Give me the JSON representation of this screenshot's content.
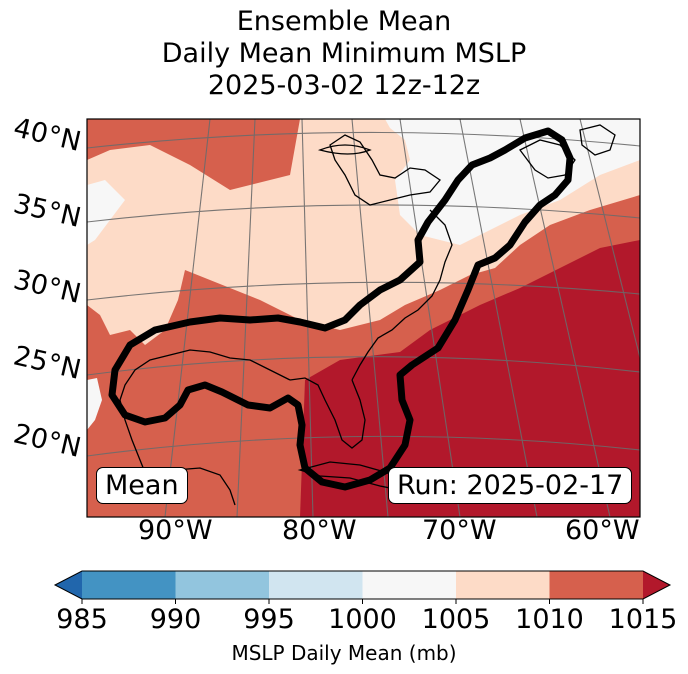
{
  "title": {
    "line1": "Ensemble Mean",
    "line2": "Daily Mean Minimum MSLP",
    "line3": "2025-03-02 12z-12z"
  },
  "map": {
    "lat_labels": [
      "40°N",
      "35°N",
      "30°N",
      "25°N",
      "20°N"
    ],
    "lon_labels": [
      "90°W",
      "80°W",
      "70°W",
      "60°W"
    ],
    "mean_label": "Mean",
    "run_label": "Run: 2025-02-17",
    "colors": {
      "c1000": "#f7f7f7",
      "c1005": "#fddbc7",
      "c1010": "#d6604d",
      "c1015": "#b2182b"
    }
  },
  "chart_data": {
    "type": "heatmap",
    "title": "Ensemble Mean Daily Mean Minimum MSLP 2025-03-02 12z-12z",
    "variable": "MSLP Daily Mean (mb)",
    "lat_range": [
      20,
      40
    ],
    "lon_range": [
      -90,
      -60
    ],
    "colorbar": {
      "label": "MSLP Daily Mean (mb)",
      "ticks": [
        "985",
        "990",
        "995",
        "1000",
        "1005",
        "1010",
        "1015"
      ],
      "bins": [
        {
          "min": 985,
          "max": 990,
          "color": "#4393c3"
        },
        {
          "min": 990,
          "max": 995,
          "color": "#92c5de"
        },
        {
          "min": 995,
          "max": 1000,
          "color": "#d1e5f0"
        },
        {
          "min": 1000,
          "max": 1005,
          "color": "#f7f7f7"
        },
        {
          "min": 1005,
          "max": 1010,
          "color": "#fddbc7"
        },
        {
          "min": 1010,
          "max": 1015,
          "color": "#d6604d"
        }
      ],
      "under_color": "#2166ac",
      "over_color": "#b2182b",
      "extend": "both"
    },
    "annotations": [
      "Mean",
      "Run: 2025-02-17"
    ]
  }
}
